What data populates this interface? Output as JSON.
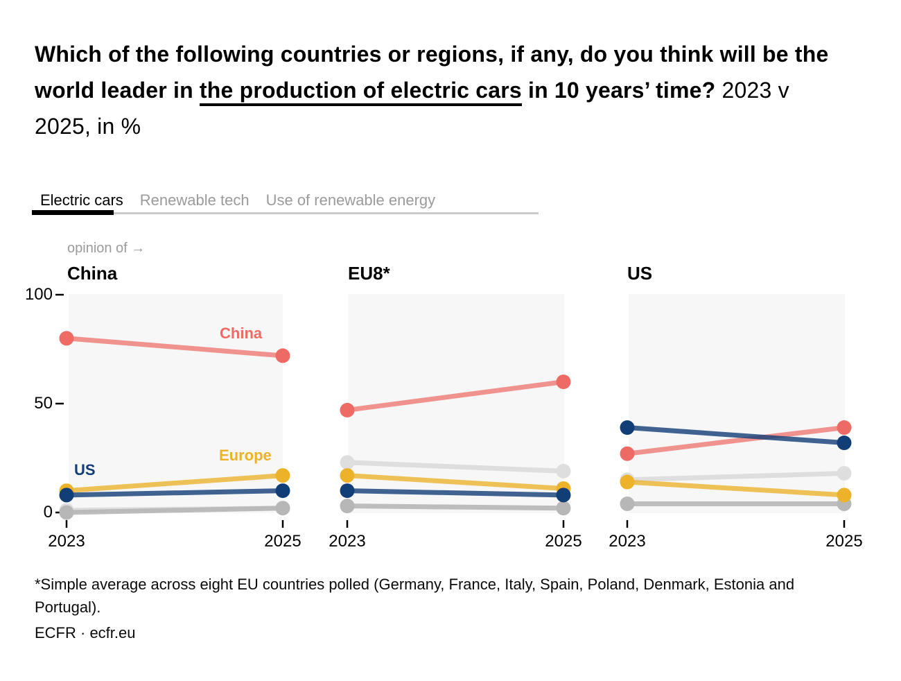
{
  "header": {
    "question_part1": "Which of the following countries or regions, if any, do you think will be the world leader in ",
    "question_underlined": "the production of electric cars",
    "question_part2": " in 10 years’ time?",
    "subtitle": " 2023 v 2025, in %"
  },
  "tabs": {
    "items": [
      {
        "label": "Electric cars",
        "active": true
      },
      {
        "label": "Renewable tech",
        "active": false
      },
      {
        "label": "Use of renewable energy",
        "active": false
      }
    ]
  },
  "colors": {
    "china": "#ee6a64",
    "europe": "#ecb22a",
    "us": "#123e78",
    "gray_light": "#dedede",
    "gray_dark": "#b7b7b7",
    "plot_bg": "#f7f7f7",
    "muted_text": "#9b9b9b",
    "tab_rule": "#c9c9c9",
    "text": "#000000"
  },
  "chart_data": {
    "type": "line",
    "subtype": "slope-chart-small-multiples",
    "axis_note": "opinion of →",
    "x_labels": [
      "2023",
      "2025"
    ],
    "ylim": [
      0,
      100
    ],
    "grid": false,
    "y_axis": {
      "ticks": [
        {
          "label": "100",
          "value": 100
        },
        {
          "label": "50",
          "value": 50
        },
        {
          "label": "0",
          "value": 0
        }
      ]
    },
    "panels": [
      {
        "title": "China",
        "series": [
          {
            "name": "gray-light",
            "label": "",
            "values": [
              1,
              2
            ]
          },
          {
            "name": "gray-dark",
            "label": "",
            "values": [
              0,
              2
            ]
          },
          {
            "name": "europe",
            "label": "Europe",
            "values": [
              10,
              17
            ]
          },
          {
            "name": "china",
            "label": "China",
            "values": [
              80,
              72
            ]
          },
          {
            "name": "us",
            "label": "US",
            "values": [
              8,
              10
            ]
          }
        ]
      },
      {
        "title": "EU8*",
        "series": [
          {
            "name": "gray-light",
            "label": "",
            "values": [
              23,
              19
            ]
          },
          {
            "name": "gray-dark",
            "label": "",
            "values": [
              3,
              2
            ]
          },
          {
            "name": "europe",
            "label": "",
            "values": [
              17,
              11
            ]
          },
          {
            "name": "china",
            "label": "",
            "values": [
              47,
              60
            ]
          },
          {
            "name": "us",
            "label": "",
            "values": [
              10,
              8
            ]
          }
        ]
      },
      {
        "title": "US",
        "series": [
          {
            "name": "gray-light",
            "label": "",
            "values": [
              15,
              18
            ]
          },
          {
            "name": "gray-dark",
            "label": "",
            "values": [
              4,
              4
            ]
          },
          {
            "name": "europe",
            "label": "",
            "values": [
              14,
              8
            ]
          },
          {
            "name": "china",
            "label": "",
            "values": [
              27,
              39
            ]
          },
          {
            "name": "us",
            "label": "",
            "values": [
              39,
              32
            ]
          }
        ]
      }
    ]
  },
  "footnote": {
    "text": "*Simple average across eight EU countries polled (Germany, France, Italy, Spain, Poland, Denmark, Estonia and Portugal)."
  },
  "source": {
    "text": "ECFR · ecfr.eu"
  }
}
